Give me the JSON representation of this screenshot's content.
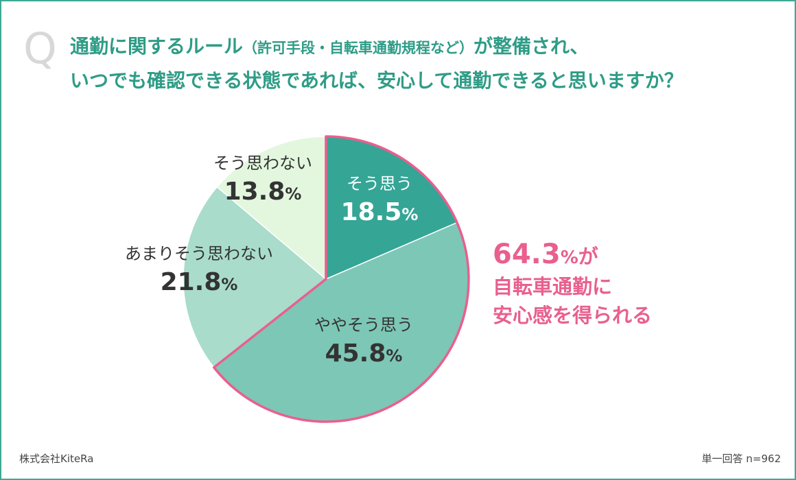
{
  "question": {
    "mark": "Q",
    "line1_pre": "通勤に関するルール",
    "line1_paren": "（許可手段・自転車通勤規程など）",
    "line1_post": "が整備され、",
    "line2": "いつでも確認できる状態であれば、安心して通勤できると思いますか？"
  },
  "callout": {
    "value": "64.3",
    "unit": "%",
    "suffix": "が",
    "line2": "自転車通勤に",
    "line3": "安心感を得られる"
  },
  "footer": {
    "company": "株式会社KiteRa",
    "note": "単一回答 n=962"
  },
  "colors": {
    "frame": "#3ea893",
    "title": "#2e9c86",
    "accent": "#e95f8e",
    "slice_1": "#35a596",
    "slice_2": "#7dc7b6",
    "slice_3": "#a9dccb",
    "slice_4": "#e3f7df"
  },
  "chart_data": {
    "type": "pie",
    "slices": [
      {
        "label": "そう思う",
        "value": 18.5,
        "display": "18.5",
        "color": "#35a596",
        "text_color": "#ffffff",
        "highlight": true
      },
      {
        "label": "ややそう思う",
        "value": 45.8,
        "display": "45.8",
        "color": "#7dc7b6",
        "text_color": "#333333",
        "highlight": true
      },
      {
        "label": "あまりそう思わない",
        "value": 21.8,
        "display": "21.8",
        "color": "#a9dccb",
        "text_color": "#333333",
        "highlight": false
      },
      {
        "label": "そう思わない",
        "value": 13.8,
        "display": "13.8",
        "color": "#e3f7df",
        "text_color": "#333333",
        "highlight": false
      }
    ],
    "unit": "%",
    "start": "12 o'clock",
    "direction": "clockwise",
    "highlight_outline_color": "#e95f8e"
  }
}
